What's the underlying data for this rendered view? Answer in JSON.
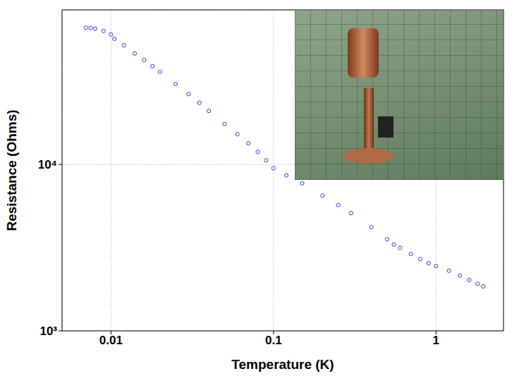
{
  "chart_data": {
    "type": "scatter",
    "x_label": "Temperature (K)",
    "y_label": "Resistance (Ohms)",
    "log": true,
    "grid": true,
    "marker": "circle_open",
    "color": "#2222dd",
    "xlim": [
      0.005,
      2.6
    ],
    "ylim": [
      1000,
      85000
    ],
    "xticks": [
      0.01,
      0.1,
      1
    ],
    "yticks": [
      {
        "value": 1000,
        "label": "10³"
      },
      {
        "value": 10000,
        "label": "10⁴"
      }
    ],
    "x": [
      0.007,
      0.0075,
      0.008,
      0.009,
      0.01,
      0.0105,
      0.012,
      0.014,
      0.016,
      0.018,
      0.02,
      0.025,
      0.03,
      0.035,
      0.04,
      0.05,
      0.06,
      0.07,
      0.08,
      0.09,
      0.1,
      0.12,
      0.15,
      0.2,
      0.25,
      0.3,
      0.4,
      0.5,
      0.55,
      0.6,
      0.7,
      0.8,
      0.9,
      1.0,
      1.2,
      1.4,
      1.6,
      1.8,
      1.95
    ],
    "values": [
      66500,
      66200,
      65500,
      63500,
      60500,
      57000,
      52000,
      46500,
      42500,
      39000,
      36000,
      30500,
      26500,
      23500,
      21000,
      17500,
      15200,
      13400,
      11900,
      10600,
      9500,
      8600,
      7700,
      6500,
      5700,
      5100,
      4200,
      3550,
      3300,
      3150,
      2900,
      2700,
      2550,
      2450,
      2300,
      2150,
      2020,
      1920,
      1850
    ]
  }
}
